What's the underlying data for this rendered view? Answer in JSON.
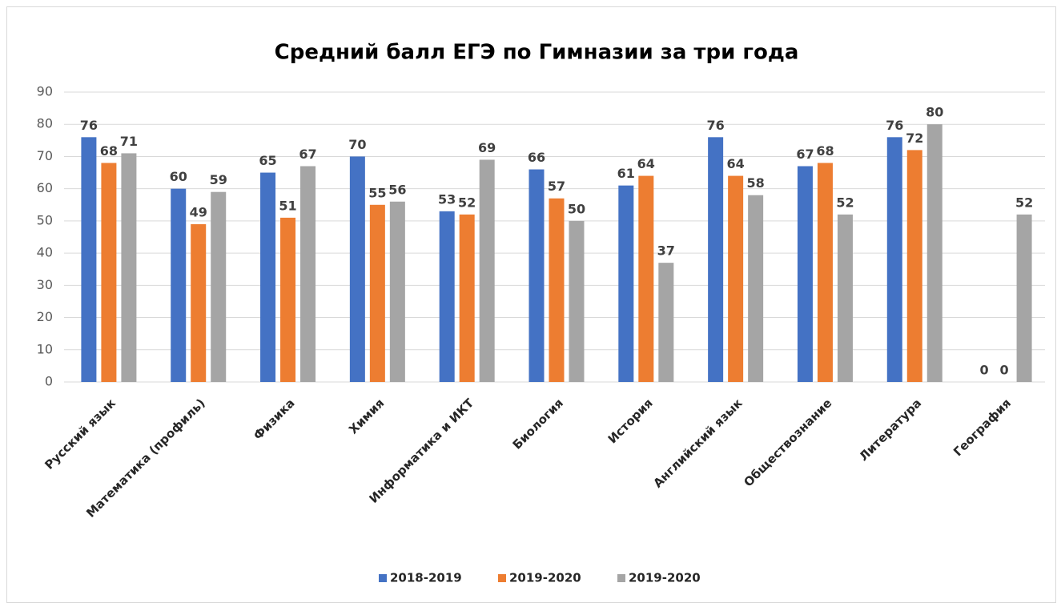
{
  "chart_data": {
    "type": "bar",
    "title": "Средний балл ЕГЭ по Гимназии за три года",
    "categories": [
      "Русский язык",
      "Математика (профиль)",
      "Физика",
      "Химия",
      "Информатика и ИКТ",
      "Биология",
      "История",
      "Английский язык",
      "Обществознание",
      "Литература",
      "География"
    ],
    "series": [
      {
        "name": "2018-2019",
        "color": "#4472c4",
        "values": [
          76,
          60,
          65,
          70,
          53,
          66,
          61,
          76,
          67,
          76,
          0
        ]
      },
      {
        "name": "2019-2020",
        "color": "#ed7d31",
        "values": [
          68,
          49,
          51,
          55,
          52,
          57,
          64,
          64,
          68,
          72,
          0
        ]
      },
      {
        "name": "2019-2020",
        "color": "#a5a5a5",
        "values": [
          71,
          59,
          67,
          56,
          69,
          50,
          37,
          58,
          52,
          80,
          52
        ]
      }
    ],
    "ylim": [
      0,
      90
    ],
    "yticks": [
      0,
      10,
      20,
      30,
      40,
      50,
      60,
      70,
      80,
      90
    ],
    "grid": true,
    "legend": "bottom"
  }
}
